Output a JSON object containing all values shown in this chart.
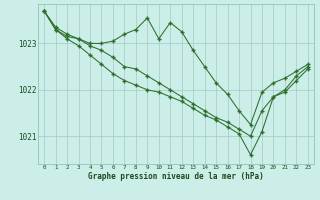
{
  "title": "Graphe pression niveau de la mer (hPa)",
  "bg_color": "#cceee8",
  "grid_color": "#aacfc8",
  "line_color": "#2d6e2d",
  "marker": "+",
  "xlim": [
    -0.5,
    23.5
  ],
  "ylim": [
    1020.4,
    1023.85
  ],
  "yticks": [
    1021,
    1022,
    1023
  ],
  "ytick_labels": [
    "1021",
    "1022",
    "1023"
  ],
  "xticks": [
    0,
    1,
    2,
    3,
    4,
    5,
    6,
    7,
    8,
    9,
    10,
    11,
    12,
    13,
    14,
    15,
    16,
    17,
    18,
    19,
    20,
    21,
    22,
    23
  ],
  "series": [
    [
      1023.7,
      1023.35,
      1023.2,
      1023.1,
      1023.0,
      1023.0,
      1023.05,
      1023.2,
      1023.3,
      1023.55,
      1023.1,
      1023.45,
      1023.25,
      1022.85,
      1022.5,
      1022.15,
      1021.9,
      1021.55,
      1021.25,
      1021.95,
      1022.15,
      1022.25,
      1022.4,
      1022.55
    ],
    [
      1023.7,
      1023.3,
      1023.15,
      1023.1,
      1022.95,
      1022.85,
      1022.7,
      1022.5,
      1022.45,
      1022.3,
      1022.15,
      1022.0,
      1021.85,
      1021.7,
      1021.55,
      1021.4,
      1021.3,
      1021.15,
      1021.0,
      1021.55,
      1021.85,
      1021.95,
      1022.2,
      1022.45
    ],
    [
      1023.7,
      1023.3,
      1023.1,
      1022.95,
      1022.75,
      1022.55,
      1022.35,
      1022.2,
      1022.1,
      1022.0,
      1021.95,
      1021.85,
      1021.75,
      1021.6,
      1021.45,
      1021.35,
      1021.2,
      1021.05,
      1020.6,
      1021.1,
      1021.85,
      1022.0,
      1022.3,
      1022.5
    ]
  ]
}
